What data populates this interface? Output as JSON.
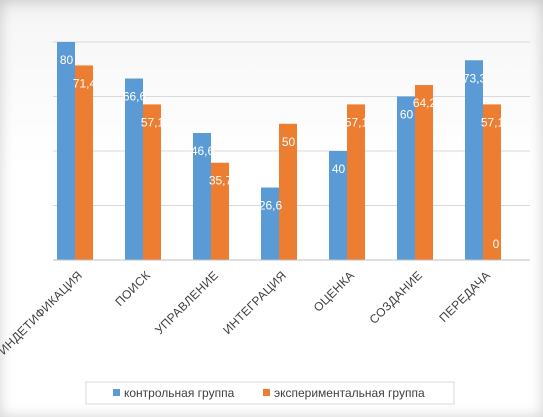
{
  "chart_data": {
    "type": "bar",
    "title": "",
    "xlabel": "",
    "ylabel": "",
    "categories": [
      "ИНДЕТИФИКАЦИЯ",
      "ПОИСК",
      "УПРАВЛЕНИЕ",
      "ИНТЕГРАЦИЯ",
      "ОЦЕНКА",
      "СОЗДАНИЕ",
      "ПЕРЕДАЧА"
    ],
    "series": [
      {
        "name": "контрольная группа",
        "color": "#5B9BD5",
        "values": [
          80,
          66.6,
          46.6,
          26.6,
          40,
          60,
          73.3
        ],
        "labels": [
          "80",
          "66,6",
          "46,6",
          "26,6",
          "40",
          "60",
          "73,3"
        ]
      },
      {
        "name": "экспериментальная группа",
        "color": "#ED7D31",
        "values": [
          71.4,
          57.1,
          35.7,
          50,
          57.1,
          64.2,
          57.1
        ],
        "labels": [
          "71,4",
          "57,1",
          "35,7",
          "50",
          "57,1",
          "64,2",
          "57,1"
        ]
      }
    ],
    "extra_labels": [
      {
        "category_index": 6,
        "text": "0"
      }
    ],
    "ylim": [
      0,
      80
    ],
    "grid": true,
    "legend": "bottom"
  }
}
